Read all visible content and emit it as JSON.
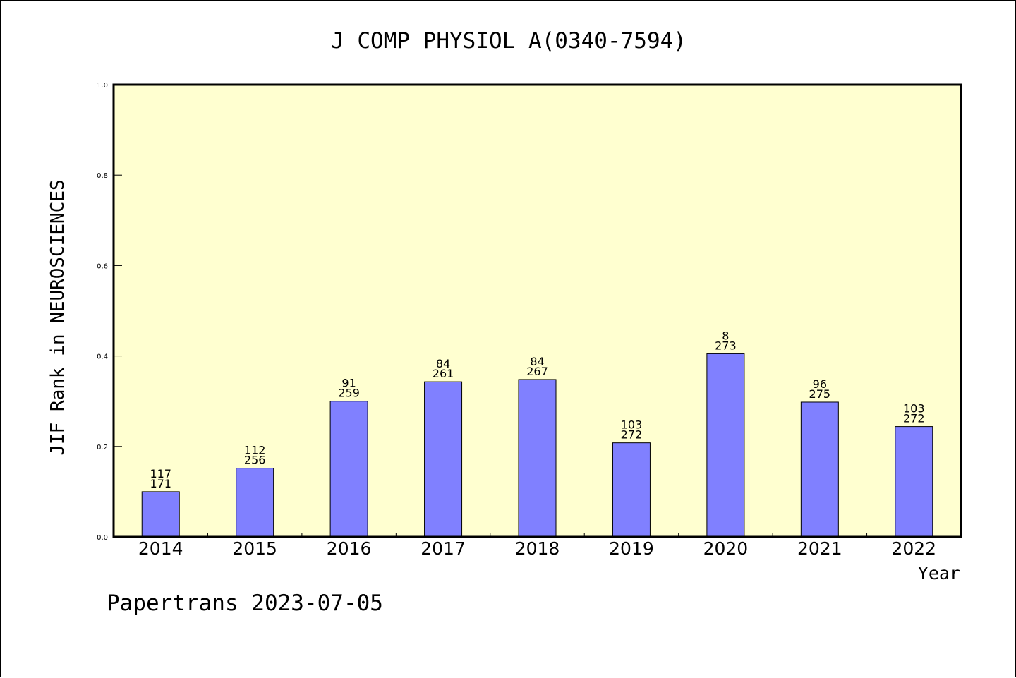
{
  "chart_data": {
    "type": "bar",
    "title": "J COMP PHYSIOL A(0340-7594)",
    "xlabel": "Year",
    "ylabel": "JIF Rank in NEUROSCIENCES",
    "ylim": [
      0,
      1.0
    ],
    "yticks": [
      "0.0",
      "0.2",
      "0.4",
      "0.6",
      "0.8",
      "1.0"
    ],
    "categories": [
      "2014",
      "2015",
      "2016",
      "2017",
      "2018",
      "2019",
      "2020",
      "2021",
      "2022"
    ],
    "values": [
      0.1,
      0.152,
      0.3,
      0.343,
      0.348,
      0.208,
      0.405,
      0.298,
      0.244
    ],
    "rank_labels": [
      "117",
      "112",
      "91",
      "84",
      "84",
      "103",
      "8",
      "96",
      "103"
    ],
    "total_labels": [
      "171",
      "256",
      "259",
      "261",
      "267",
      "272",
      "273",
      "275",
      "272"
    ],
    "grid": false,
    "colors": {
      "bar": "#8080ff",
      "plot_background": "#ffffd0",
      "axis": "#000000"
    }
  },
  "footer": "Papertrans 2023-07-05"
}
